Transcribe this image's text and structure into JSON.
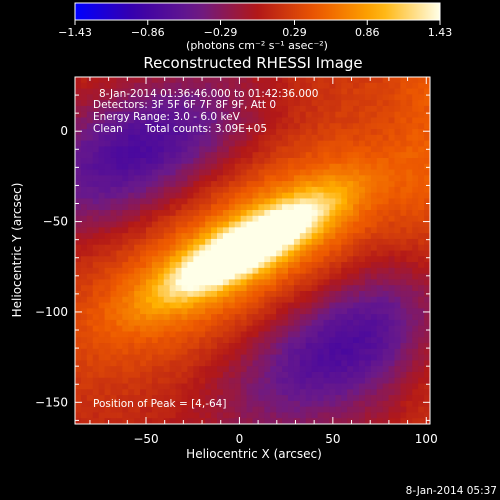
{
  "chart_data": {
    "type": "heatmap",
    "title": "Reconstructed RHESSI Image",
    "xlabel": "Heliocentric X (arcsec)",
    "ylabel": "Heliocentric Y (arcsec)",
    "xlim": [
      -88,
      102
    ],
    "ylim": [
      -162,
      30
    ],
    "x_ticks": [
      -50,
      0,
      50,
      100
    ],
    "y_ticks": [
      0,
      -50,
      -100,
      -150
    ],
    "colorbar": {
      "min": -1.43,
      "max": 1.43,
      "ticks": [
        -1.43,
        -0.86,
        -0.29,
        0.29,
        0.86,
        1.43
      ],
      "tick_labels": [
        "−1.43",
        "−0.86",
        "−0.29",
        "0.29",
        "0.86",
        "1.43"
      ],
      "label": "(photons cm⁻² s⁻¹ asec⁻²)",
      "colors": [
        "#0000ff",
        "#3a00a8",
        "#6a1a8a",
        "#b21818",
        "#ee5a00",
        "#ffb000",
        "#ffffe8"
      ]
    },
    "peak": {
      "x": 4,
      "y": -64,
      "value": 1.43
    },
    "features": {
      "main_source_axis_deg": 30,
      "negative_lobes": [
        {
          "x": -52,
          "y": -10
        },
        {
          "x": 55,
          "y": -118
        }
      ]
    },
    "annotations": {
      "time_range": "8-Jan-2014 01:36:46.000 to 01:42:36.000",
      "detectors": "Detectors: 3F 5F 6F 7F 8F 9F, Att 0",
      "energy": "Energy Range: 3.0 - 6.0 keV",
      "clean_label": "Clean",
      "total_counts": "Total counts: 3.09E+05",
      "peak_position": "Position of Peak = [4,-64]"
    },
    "timestamp": "8-Jan-2014 05:37"
  }
}
